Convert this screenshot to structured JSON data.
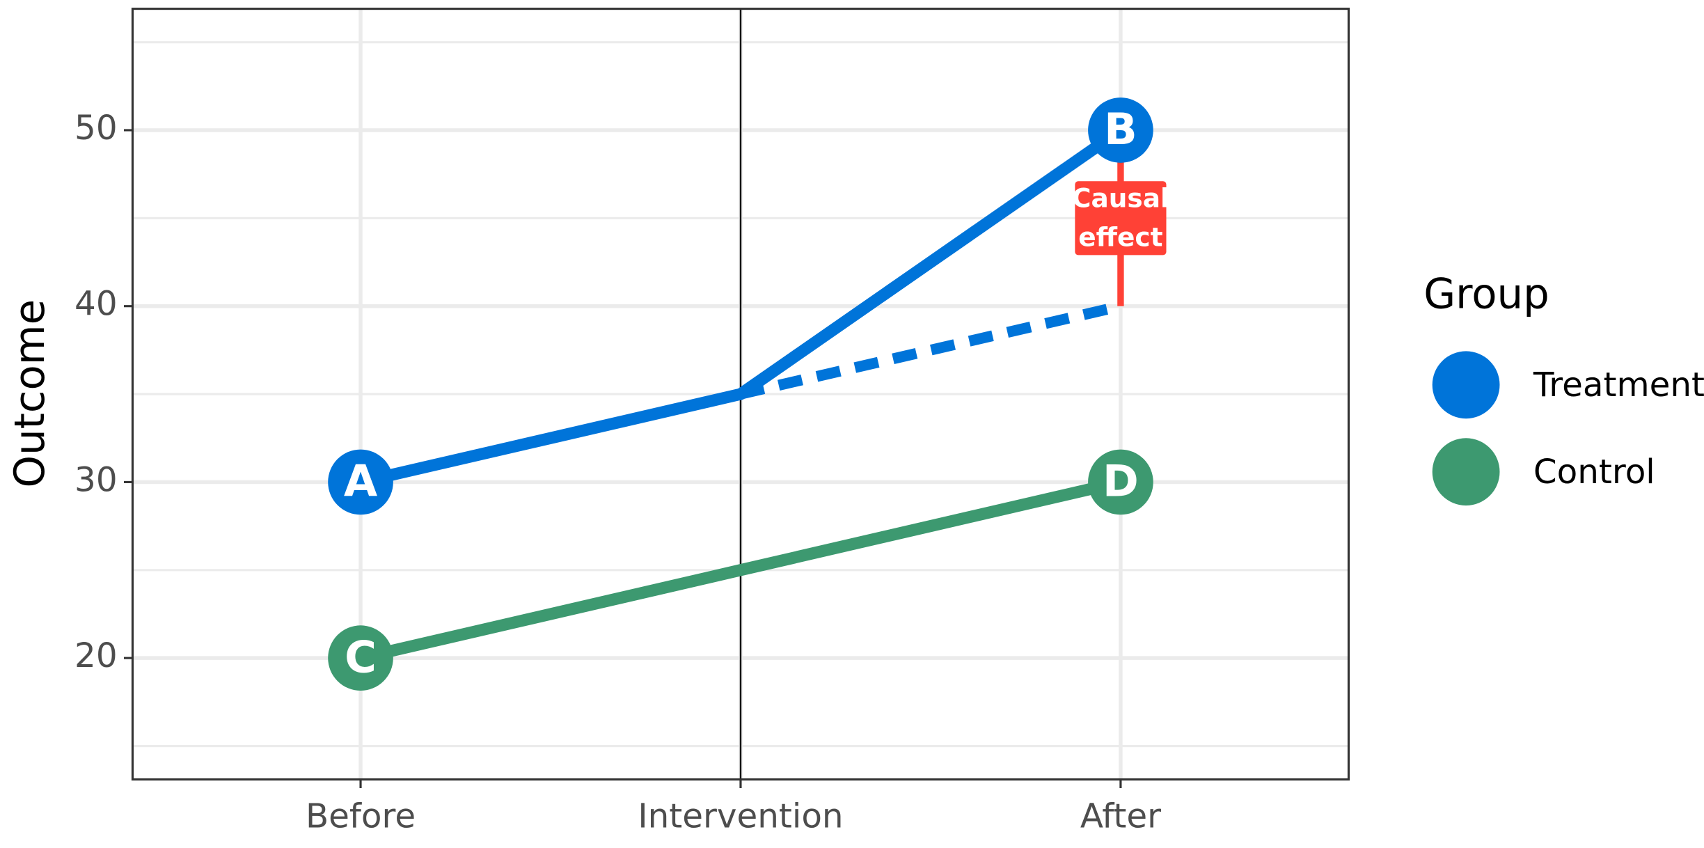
{
  "chart_data": {
    "type": "line",
    "categories": [
      "Before",
      "Intervention",
      "After"
    ],
    "y_label": "Outcome",
    "ylim": [
      13.1,
      56.9
    ],
    "yticks": [
      20,
      30,
      40,
      50
    ],
    "minor_yticks": [
      15,
      25,
      35,
      45,
      55
    ],
    "grid": true,
    "legend_title": "Group",
    "legend": "right",
    "series": [
      {
        "name": "Treatment",
        "color": "#0074D9",
        "values": [
          30,
          35,
          50
        ],
        "point_labels": [
          "A",
          null,
          "B"
        ]
      },
      {
        "name": "Control",
        "color": "#3D9970",
        "values": [
          20,
          25,
          30
        ],
        "point_labels": [
          "C",
          null,
          "D"
        ]
      }
    ],
    "counterfactual": {
      "color": "#0074D9",
      "values": [
        null,
        35,
        40
      ]
    },
    "effect": {
      "color": "#FF4136",
      "values": [
        40,
        50
      ],
      "label": [
        "Causal",
        "effect"
      ]
    }
  }
}
